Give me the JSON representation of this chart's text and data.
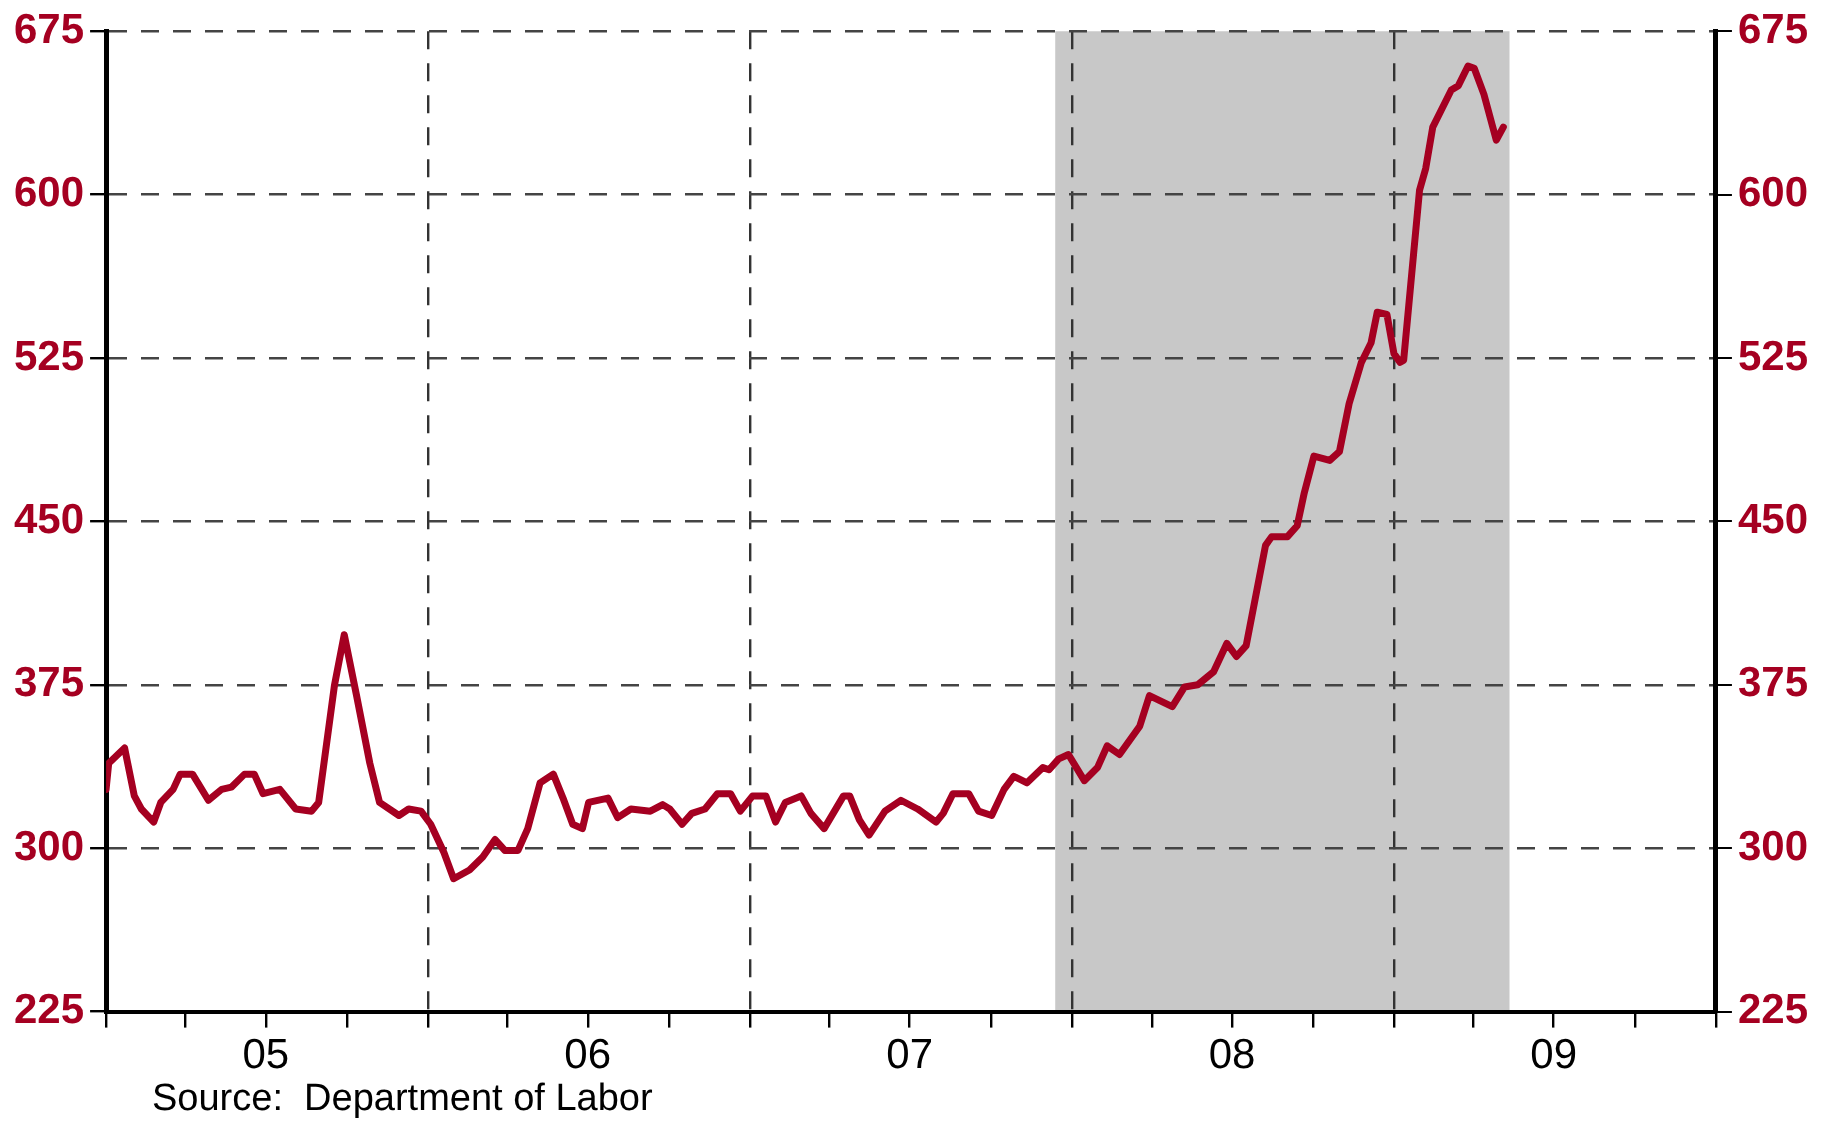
{
  "chart_data": {
    "type": "line",
    "x": [
      "2005-01-01",
      "2005-01-04",
      "2005-01-22",
      "2005-02-02",
      "2005-02-10",
      "2005-02-24",
      "2005-03-04",
      "2005-03-18",
      "2005-03-26",
      "2005-04-09",
      "2005-04-27",
      "2005-05-12",
      "2005-05-23",
      "2005-06-07",
      "2005-06-18",
      "2005-06-28",
      "2005-07-17",
      "2005-08-04",
      "2005-08-22",
      "2005-08-30",
      "2005-09-17",
      "2005-09-28",
      "2005-10-12",
      "2005-10-27",
      "2005-11-07",
      "2005-11-29",
      "2005-12-10",
      "2005-12-24",
      "2006-01-04",
      "2006-01-19",
      "2006-01-30",
      "2006-02-17",
      "2006-03-04",
      "2006-03-18",
      "2006-03-29",
      "2006-04-13",
      "2006-04-24",
      "2006-05-08",
      "2006-05-23",
      "2006-06-03",
      "2006-06-14",
      "2006-06-25",
      "2006-07-02",
      "2006-07-24",
      "2006-08-04",
      "2006-08-19",
      "2006-09-10",
      "2006-09-24",
      "2006-10-02",
      "2006-10-16",
      "2006-10-27",
      "2006-11-11",
      "2006-11-25",
      "2006-12-10",
      "2006-12-21",
      "2007-01-04",
      "2007-01-19",
      "2007-01-30",
      "2007-02-10",
      "2007-02-28",
      "2007-03-11",
      "2007-03-26",
      "2007-04-17",
      "2007-04-24",
      "2007-05-05",
      "2007-05-16",
      "2007-06-03",
      "2007-06-21",
      "2007-07-10",
      "2007-07-31",
      "2007-08-08",
      "2007-08-19",
      "2007-09-06",
      "2007-09-17",
      "2007-10-02",
      "2007-10-16",
      "2007-10-27",
      "2007-11-11",
      "2007-11-29",
      "2007-12-06",
      "2007-12-17",
      "2007-12-28",
      "2008-01-15",
      "2008-01-30",
      "2008-02-10",
      "2008-02-24",
      "2008-03-18",
      "2008-03-29",
      "2008-04-24",
      "2008-05-08",
      "2008-05-23",
      "2008-06-10",
      "2008-06-25",
      "2008-07-06",
      "2008-07-17",
      "2008-08-08",
      "2008-08-15",
      "2008-09-02",
      "2008-09-13",
      "2008-09-21",
      "2008-10-02",
      "2008-10-20",
      "2008-10-31",
      "2008-11-11",
      "2008-11-25",
      "2008-12-06",
      "2008-12-13",
      "2008-12-24",
      "2009-01-01",
      "2009-01-08",
      "2009-01-12",
      "2009-01-30",
      "2009-02-06",
      "2009-02-14",
      "2009-03-07",
      "2009-03-15",
      "2009-03-26",
      "2009-04-02",
      "2009-04-13",
      "2009-04-27",
      "2009-05-05"
    ],
    "series": [
      {
        "color": "#a50021",
        "values": [
          327,
          339,
          346,
          324,
          318,
          312,
          321,
          327,
          334,
          334,
          322,
          327,
          328,
          334,
          334,
          325,
          327,
          318,
          317,
          321,
          375,
          398,
          370,
          339,
          321,
          315,
          318,
          317,
          311,
          298,
          286,
          290,
          296,
          304,
          299,
          299,
          309,
          330,
          334,
          323,
          311,
          309,
          321,
          323,
          314,
          318,
          317,
          320,
          318,
          311,
          316,
          318,
          325,
          325,
          317,
          324,
          324,
          312,
          321,
          324,
          316,
          309,
          324,
          324,
          313,
          306,
          317,
          322,
          318,
          312,
          316,
          325,
          325,
          317,
          315,
          327,
          333,
          330,
          337,
          336,
          341,
          343,
          331,
          337,
          347,
          343,
          356,
          370,
          365,
          374,
          375,
          381,
          394,
          388,
          393,
          439,
          443,
          443,
          448,
          463,
          480,
          478,
          482,
          504,
          523,
          532,
          546,
          545,
          527,
          523,
          524,
          602,
          612,
          631,
          648,
          650,
          659,
          658,
          646,
          625,
          631
        ]
      }
    ],
    "xlim": [
      "2005-01-01",
      "2010-01-01"
    ],
    "xticks": [
      {
        "value": "2005-01-01",
        "label": null
      },
      {
        "value": "2005-04-01",
        "label": null
      },
      {
        "value": "2005-07-01",
        "label": "05"
      },
      {
        "value": "2005-10-01",
        "label": null
      },
      {
        "value": "2006-01-01",
        "label": null
      },
      {
        "value": "2006-04-01",
        "label": null
      },
      {
        "value": "2006-07-01",
        "label": "06"
      },
      {
        "value": "2006-10-01",
        "label": null
      },
      {
        "value": "2007-01-01",
        "label": null
      },
      {
        "value": "2007-04-01",
        "label": null
      },
      {
        "value": "2007-07-01",
        "label": "07"
      },
      {
        "value": "2007-10-01",
        "label": null
      },
      {
        "value": "2008-01-01",
        "label": null
      },
      {
        "value": "2008-04-01",
        "label": null
      },
      {
        "value": "2008-07-01",
        "label": "08"
      },
      {
        "value": "2008-10-01",
        "label": null
      },
      {
        "value": "2009-01-01",
        "label": null
      },
      {
        "value": "2009-04-01",
        "label": null
      },
      {
        "value": "2009-07-01",
        "label": "09"
      },
      {
        "value": "2009-10-01",
        "label": null
      },
      {
        "value": "2010-01-01",
        "label": null
      }
    ],
    "ylim": [
      225,
      675
    ],
    "yticks": [
      225,
      300,
      375,
      450,
      525,
      600,
      675
    ],
    "y2lim": [
      225,
      675
    ],
    "y2ticks": [
      225,
      300,
      375,
      450,
      525,
      600,
      675
    ],
    "bands": [
      {
        "axis": "x",
        "from": "2007-12-13",
        "to": "2009-05-12",
        "color": "#c8c8c8"
      }
    ],
    "grid": true,
    "legend": false,
    "marker": "none",
    "line_style": "solid",
    "annotations": [
      "Source:  Department of Labor"
    ]
  }
}
